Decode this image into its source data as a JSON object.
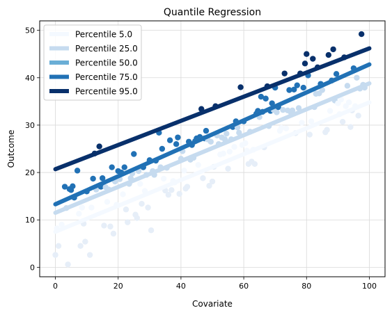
{
  "chart_data": {
    "type": "scatter",
    "title": "Quantile Regression",
    "xlabel": "Covariate",
    "ylabel": "Outcome",
    "xlim": [
      -5,
      105
    ],
    "ylim": [
      -2,
      52
    ],
    "xticks": [
      0,
      20,
      40,
      60,
      80,
      100
    ],
    "yticks": [
      0,
      10,
      20,
      30,
      40,
      50
    ],
    "grid": true,
    "legend_position": "top-left",
    "lines": [
      {
        "name": "Percentile 5.0",
        "x": [
          0,
          100
        ],
        "y": [
          7.5,
          34.8
        ],
        "color": "#f4f9ff"
      },
      {
        "name": "Percentile 25.0",
        "x": [
          0,
          100
        ],
        "y": [
          11.5,
          38.8
        ],
        "color": "#c6dbef"
      },
      {
        "name": "Percentile 50.0",
        "x": [
          0,
          100
        ],
        "y": [
          13.3,
          42.8
        ],
        "color": "#6aaed6"
      },
      {
        "name": "Percentile 75.0",
        "x": [
          0,
          100
        ],
        "y": [
          13.3,
          42.8
        ],
        "color": "#2171b5"
      },
      {
        "name": "Percentile 95.0",
        "x": [
          0,
          100
        ],
        "y": [
          20.7,
          46.2
        ],
        "color": "#08306b"
      }
    ],
    "points": [
      {
        "x": 0,
        "y": 2.6
      },
      {
        "x": 0.5,
        "y": 8.2
      },
      {
        "x": 1,
        "y": 4.5
      },
      {
        "x": 2,
        "y": 9.0
      },
      {
        "x": 3,
        "y": 17.0
      },
      {
        "x": 3.5,
        "y": 12.5
      },
      {
        "x": 4,
        "y": 0.6
      },
      {
        "x": 4.5,
        "y": 16.5
      },
      {
        "x": 5,
        "y": 16.3
      },
      {
        "x": 5.5,
        "y": 17.1
      },
      {
        "x": 6,
        "y": 14.7
      },
      {
        "x": 7,
        "y": 20.4
      },
      {
        "x": 7.5,
        "y": 11.3
      },
      {
        "x": 8,
        "y": 4.5
      },
      {
        "x": 8.5,
        "y": 12.6
      },
      {
        "x": 9,
        "y": 9.2
      },
      {
        "x": 9.5,
        "y": 5.4
      },
      {
        "x": 10,
        "y": 16.0
      },
      {
        "x": 11,
        "y": 2.6
      },
      {
        "x": 11.5,
        "y": 12.6
      },
      {
        "x": 12,
        "y": 18.7
      },
      {
        "x": 12.5,
        "y": 24.0
      },
      {
        "x": 13,
        "y": 16.4
      },
      {
        "x": 14,
        "y": 25.5
      },
      {
        "x": 14.5,
        "y": 17.0
      },
      {
        "x": 15,
        "y": 18.8
      },
      {
        "x": 15.5,
        "y": 8.8
      },
      {
        "x": 16,
        "y": 16.9
      },
      {
        "x": 16.5,
        "y": 13.8
      },
      {
        "x": 17,
        "y": 16.4
      },
      {
        "x": 17.5,
        "y": 8.6
      },
      {
        "x": 18,
        "y": 21.1
      },
      {
        "x": 18.5,
        "y": 7.1
      },
      {
        "x": 19,
        "y": 18.1
      },
      {
        "x": 19.5,
        "y": 13.2
      },
      {
        "x": 20,
        "y": 20.3
      },
      {
        "x": 20.5,
        "y": 18.6
      },
      {
        "x": 21,
        "y": 20.0
      },
      {
        "x": 21.5,
        "y": 15.4
      },
      {
        "x": 22,
        "y": 21.1
      },
      {
        "x": 22.5,
        "y": 12.2
      },
      {
        "x": 23,
        "y": 9.5
      },
      {
        "x": 23.5,
        "y": 17.6
      },
      {
        "x": 24,
        "y": 18.8
      },
      {
        "x": 24.5,
        "y": 19.8
      },
      {
        "x": 25,
        "y": 23.9
      },
      {
        "x": 25.5,
        "y": 11.1
      },
      {
        "x": 26,
        "y": 10.4
      },
      {
        "x": 26.5,
        "y": 20.3
      },
      {
        "x": 27,
        "y": 17.6
      },
      {
        "x": 27.5,
        "y": 13.4
      },
      {
        "x": 28,
        "y": 21.1
      },
      {
        "x": 28.5,
        "y": 16.1
      },
      {
        "x": 29,
        "y": 19.5
      },
      {
        "x": 29.5,
        "y": 12.6
      },
      {
        "x": 30,
        "y": 22.6
      },
      {
        "x": 30.5,
        "y": 7.8
      },
      {
        "x": 31,
        "y": 20.3
      },
      {
        "x": 31.5,
        "y": 19.5
      },
      {
        "x": 32,
        "y": 22.5
      },
      {
        "x": 33,
        "y": 28.4
      },
      {
        "x": 33.5,
        "y": 21.1
      },
      {
        "x": 34,
        "y": 25.0
      },
      {
        "x": 34.5,
        "y": 18.7
      },
      {
        "x": 35,
        "y": 16.2
      },
      {
        "x": 35.5,
        "y": 21.0
      },
      {
        "x": 36,
        "y": 15.3
      },
      {
        "x": 36.5,
        "y": 26.8
      },
      {
        "x": 37,
        "y": 16.3
      },
      {
        "x": 37.5,
        "y": 18.2
      },
      {
        "x": 38,
        "y": 17.9
      },
      {
        "x": 38.5,
        "y": 26.0
      },
      {
        "x": 39,
        "y": 27.4
      },
      {
        "x": 39.5,
        "y": 15.5
      },
      {
        "x": 40,
        "y": 22.9
      },
      {
        "x": 40.5,
        "y": 24.5
      },
      {
        "x": 41,
        "y": 20.4
      },
      {
        "x": 41.5,
        "y": 16.6
      },
      {
        "x": 42,
        "y": 17.0
      },
      {
        "x": 42.5,
        "y": 26.5
      },
      {
        "x": 43,
        "y": 22.7
      },
      {
        "x": 43.5,
        "y": 25.8
      },
      {
        "x": 44,
        "y": 23.1
      },
      {
        "x": 44.5,
        "y": 26.6
      },
      {
        "x": 45,
        "y": 27.2
      },
      {
        "x": 45.5,
        "y": 21.6
      },
      {
        "x": 46,
        "y": 27.5
      },
      {
        "x": 46.5,
        "y": 33.4
      },
      {
        "x": 47,
        "y": 18.8
      },
      {
        "x": 47.5,
        "y": 27.2
      },
      {
        "x": 48,
        "y": 28.8
      },
      {
        "x": 48.5,
        "y": 27.0
      },
      {
        "x": 49,
        "y": 17.2
      },
      {
        "x": 49.5,
        "y": 26.5
      },
      {
        "x": 50,
        "y": 18.1
      },
      {
        "x": 50.5,
        "y": 21.2
      },
      {
        "x": 51,
        "y": 34.0
      },
      {
        "x": 51.5,
        "y": 27.8
      },
      {
        "x": 52,
        "y": 26.0
      },
      {
        "x": 52.5,
        "y": 23.8
      },
      {
        "x": 53,
        "y": 27.4
      },
      {
        "x": 53.5,
        "y": 24.0
      },
      {
        "x": 54,
        "y": 27.0
      },
      {
        "x": 54.5,
        "y": 28.2
      },
      {
        "x": 55,
        "y": 20.8
      },
      {
        "x": 55.5,
        "y": 24.4
      },
      {
        "x": 56,
        "y": 27.0
      },
      {
        "x": 56.5,
        "y": 29.6
      },
      {
        "x": 57,
        "y": 25.4
      },
      {
        "x": 57.5,
        "y": 30.8
      },
      {
        "x": 58,
        "y": 29.5
      },
      {
        "x": 58.5,
        "y": 28.4
      },
      {
        "x": 59,
        "y": 38.0
      },
      {
        "x": 59.5,
        "y": 25.8
      },
      {
        "x": 60,
        "y": 30.8
      },
      {
        "x": 60.5,
        "y": 26.2
      },
      {
        "x": 61,
        "y": 24.6
      },
      {
        "x": 61.5,
        "y": 21.8
      },
      {
        "x": 62,
        "y": 28.6
      },
      {
        "x": 62.5,
        "y": 22.3
      },
      {
        "x": 63,
        "y": 24.8
      },
      {
        "x": 63.5,
        "y": 21.8
      },
      {
        "x": 64,
        "y": 32.4
      },
      {
        "x": 64.5,
        "y": 33.0
      },
      {
        "x": 65,
        "y": 31.7
      },
      {
        "x": 65.5,
        "y": 36.0
      },
      {
        "x": 66,
        "y": 32.8
      },
      {
        "x": 66.5,
        "y": 25.3
      },
      {
        "x": 67,
        "y": 35.6
      },
      {
        "x": 67.5,
        "y": 38.2
      },
      {
        "x": 68,
        "y": 29.8
      },
      {
        "x": 68.5,
        "y": 33.0
      },
      {
        "x": 69,
        "y": 34.6
      },
      {
        "x": 69.5,
        "y": 33.2
      },
      {
        "x": 70,
        "y": 37.9
      },
      {
        "x": 70.5,
        "y": 32.7
      },
      {
        "x": 71,
        "y": 33.8
      },
      {
        "x": 71.5,
        "y": 28.8
      },
      {
        "x": 72,
        "y": 29.4
      },
      {
        "x": 72.5,
        "y": 33.2
      },
      {
        "x": 73,
        "y": 40.9
      },
      {
        "x": 73.5,
        "y": 29.3
      },
      {
        "x": 74,
        "y": 33.1
      },
      {
        "x": 74.5,
        "y": 37.4
      },
      {
        "x": 75,
        "y": 32.7
      },
      {
        "x": 75.5,
        "y": 33.1
      },
      {
        "x": 76,
        "y": 37.5
      },
      {
        "x": 76.5,
        "y": 28.3
      },
      {
        "x": 77,
        "y": 38.4
      },
      {
        "x": 77.5,
        "y": 33.6
      },
      {
        "x": 78,
        "y": 40.9
      },
      {
        "x": 78.5,
        "y": 30.5
      },
      {
        "x": 79,
        "y": 37.9
      },
      {
        "x": 79.5,
        "y": 43.0
      },
      {
        "x": 80,
        "y": 45.0
      },
      {
        "x": 80.5,
        "y": 40.5
      },
      {
        "x": 81,
        "y": 28.0
      },
      {
        "x": 81.5,
        "y": 30.8
      },
      {
        "x": 82,
        "y": 44.0
      },
      {
        "x": 82.5,
        "y": 33.8
      },
      {
        "x": 83,
        "y": 36.6
      },
      {
        "x": 83.5,
        "y": 42.2
      },
      {
        "x": 84,
        "y": 36.7
      },
      {
        "x": 84.5,
        "y": 38.7
      },
      {
        "x": 85,
        "y": 37.4
      },
      {
        "x": 86,
        "y": 28.5
      },
      {
        "x": 86.5,
        "y": 29.0
      },
      {
        "x": 87,
        "y": 44.8
      },
      {
        "x": 87.5,
        "y": 33.0
      },
      {
        "x": 88,
        "y": 39.4
      },
      {
        "x": 88.5,
        "y": 46.0
      },
      {
        "x": 89,
        "y": 35.2
      },
      {
        "x": 89.5,
        "y": 40.8
      },
      {
        "x": 90,
        "y": 34.6
      },
      {
        "x": 90.5,
        "y": 32.3
      },
      {
        "x": 91,
        "y": 35.4
      },
      {
        "x": 91.5,
        "y": 30.7
      },
      {
        "x": 92,
        "y": 44.3
      },
      {
        "x": 92.5,
        "y": 34.0
      },
      {
        "x": 93,
        "y": 38.3
      },
      {
        "x": 93.5,
        "y": 34.8
      },
      {
        "x": 94,
        "y": 29.6
      },
      {
        "x": 94.5,
        "y": 33.1
      },
      {
        "x": 95,
        "y": 42.0
      },
      {
        "x": 95.5,
        "y": 34.0
      },
      {
        "x": 96,
        "y": 40.0
      },
      {
        "x": 96.5,
        "y": 32.0
      },
      {
        "x": 97,
        "y": 37.7
      },
      {
        "x": 97.5,
        "y": 49.2
      },
      {
        "x": 98,
        "y": 38.5
      },
      {
        "x": 98.5,
        "y": 37.9
      }
    ]
  }
}
